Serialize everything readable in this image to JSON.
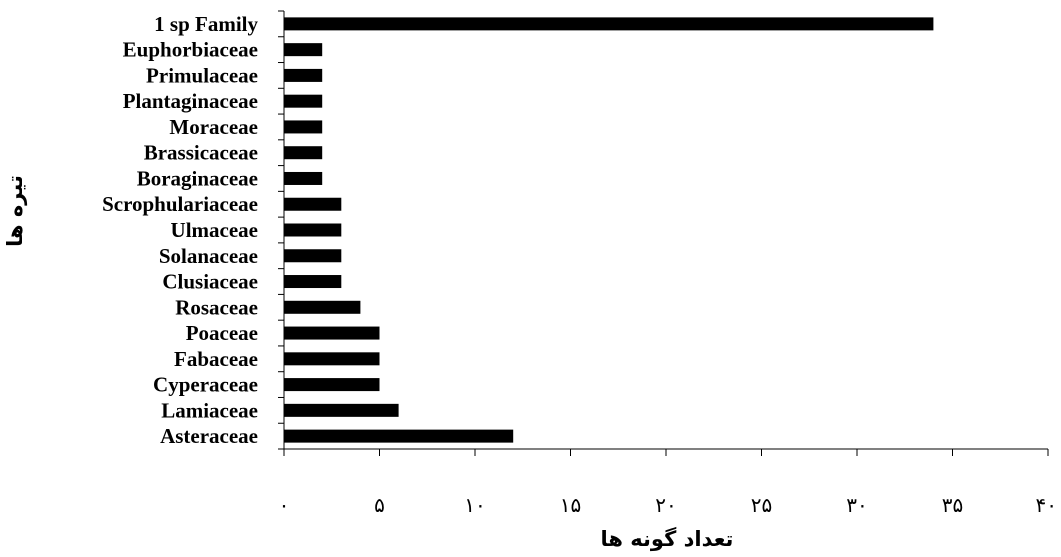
{
  "chart_data": {
    "type": "bar",
    "orientation": "horizontal",
    "categories": [
      "Asteraceae",
      "Lamiaceae",
      "Cyperaceae",
      "Fabaceae",
      "Poaceae",
      "Rosaceae",
      "Clusiaceae",
      "Solanaceae",
      "Ulmaceae",
      "Scrophulariaceae",
      "Boraginaceae",
      "Brassicaceae",
      "Moraceae",
      "Plantaginaceae",
      "Primulaceae",
      "Euphorbiaceae",
      "1 sp Family"
    ],
    "values": [
      12,
      6,
      5,
      5,
      5,
      4,
      3,
      3,
      3,
      3,
      2,
      2,
      2,
      2,
      2,
      2,
      34
    ],
    "xlim": [
      0,
      40
    ],
    "xticks": [
      0,
      5,
      10,
      15,
      20,
      25,
      30,
      35,
      40
    ],
    "xtick_labels": [
      "٠",
      "۵",
      "١٠",
      "١۵",
      "٢٠",
      "٢۵",
      "٣٠",
      "٣۵",
      "۴٠"
    ],
    "xlabel": "تعداد گونه ها",
    "ylabel": "تیره ها",
    "title": "",
    "grid": false,
    "legend": "none",
    "bar_color": "#000000"
  }
}
